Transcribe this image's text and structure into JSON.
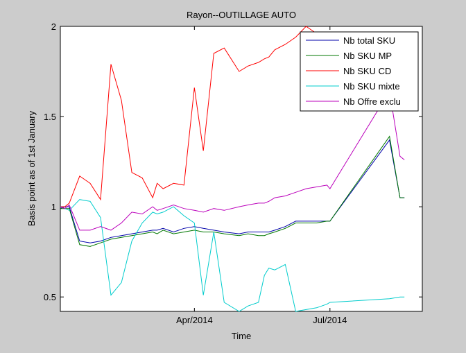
{
  "chart_data": {
    "type": "line",
    "title": "Rayon--OUTILLAGE AUTO",
    "xlabel": "Time",
    "ylabel": "Basis point as of 1st January",
    "xlim": [
      "2014-01-01",
      "2014-09-01"
    ],
    "ylim": [
      0.42,
      2.0
    ],
    "xticks": [
      {
        "label": "Apr/2014",
        "date": "2014-04-01"
      },
      {
        "label": "Jul/2014",
        "date": "2014-07-01"
      }
    ],
    "yticks": [
      {
        "label": "0.5",
        "value": 0.5
      },
      {
        "label": "1",
        "value": 1
      },
      {
        "label": "1.5",
        "value": 1.5
      },
      {
        "label": "2",
        "value": 2
      }
    ],
    "grid": false,
    "legend_position": "top-right",
    "x": [
      "2014-01-01",
      "2014-01-04",
      "2014-01-07",
      "2014-01-14",
      "2014-01-21",
      "2014-01-28",
      "2014-02-04",
      "2014-02-11",
      "2014-02-18",
      "2014-02-25",
      "2014-03-04",
      "2014-03-07",
      "2014-03-11",
      "2014-03-18",
      "2014-03-25",
      "2014-04-01",
      "2014-04-07",
      "2014-04-14",
      "2014-04-21",
      "2014-05-01",
      "2014-05-07",
      "2014-05-14",
      "2014-05-18",
      "2014-05-21",
      "2014-05-25",
      "2014-06-01",
      "2014-06-08",
      "2014-06-15",
      "2014-06-22",
      "2014-06-29",
      "2014-07-01",
      "2014-08-10",
      "2014-08-17",
      "2014-08-20"
    ],
    "series": [
      {
        "name": "Nb total SKU",
        "color": "#0000aa",
        "values": [
          0.99,
          1.0,
          1.0,
          0.81,
          0.8,
          0.81,
          0.83,
          0.84,
          0.85,
          0.86,
          0.87,
          0.87,
          0.88,
          0.86,
          0.88,
          0.89,
          0.88,
          0.87,
          0.86,
          0.85,
          0.86,
          0.86,
          0.86,
          0.86,
          0.87,
          0.89,
          0.92,
          0.92,
          0.92,
          0.92,
          0.92,
          1.37,
          1.05,
          1.05
        ]
      },
      {
        "name": "Nb SKU MP",
        "color": "#007700",
        "values": [
          0.99,
          0.99,
          0.99,
          0.79,
          0.78,
          0.8,
          0.82,
          0.83,
          0.84,
          0.85,
          0.86,
          0.85,
          0.87,
          0.85,
          0.86,
          0.87,
          0.86,
          0.86,
          0.85,
          0.84,
          0.85,
          0.84,
          0.84,
          0.85,
          0.86,
          0.88,
          0.91,
          0.91,
          0.91,
          0.92,
          0.92,
          1.39,
          1.05,
          1.05
        ]
      },
      {
        "name": "Nb SKU CD",
        "color": "#ff0000",
        "values": [
          1.0,
          1.0,
          1.02,
          1.17,
          1.13,
          1.04,
          1.79,
          1.59,
          1.19,
          1.16,
          1.05,
          1.13,
          1.1,
          1.13,
          1.12,
          1.66,
          1.31,
          1.85,
          1.88,
          1.75,
          1.78,
          1.8,
          1.82,
          1.83,
          1.87,
          1.9,
          1.94,
          2.0,
          1.96,
          1.88,
          1.86,
          1.78,
          1.8,
          1.76
        ]
      },
      {
        "name": "Nb SKU mixte",
        "color": "#00cccc",
        "values": [
          1.0,
          0.99,
          0.98,
          1.04,
          1.03,
          0.94,
          0.51,
          0.58,
          0.81,
          0.91,
          0.97,
          0.96,
          0.97,
          1.0,
          0.95,
          0.91,
          0.51,
          0.86,
          0.47,
          0.42,
          0.45,
          0.47,
          0.62,
          0.66,
          0.65,
          0.68,
          0.42,
          0.43,
          0.44,
          0.46,
          0.47,
          0.49,
          0.5,
          0.5
        ]
      },
      {
        "name": "Nb Offre exclu",
        "color": "#bb00bb",
        "values": [
          1.0,
          0.99,
          1.01,
          0.87,
          0.87,
          0.89,
          0.87,
          0.91,
          0.97,
          0.96,
          1.0,
          0.98,
          0.99,
          1.01,
          0.99,
          0.98,
          0.97,
          0.99,
          0.98,
          1.0,
          1.01,
          1.02,
          1.02,
          1.03,
          1.05,
          1.06,
          1.08,
          1.1,
          1.11,
          1.12,
          1.1,
          1.64,
          1.28,
          1.26
        ]
      }
    ]
  }
}
